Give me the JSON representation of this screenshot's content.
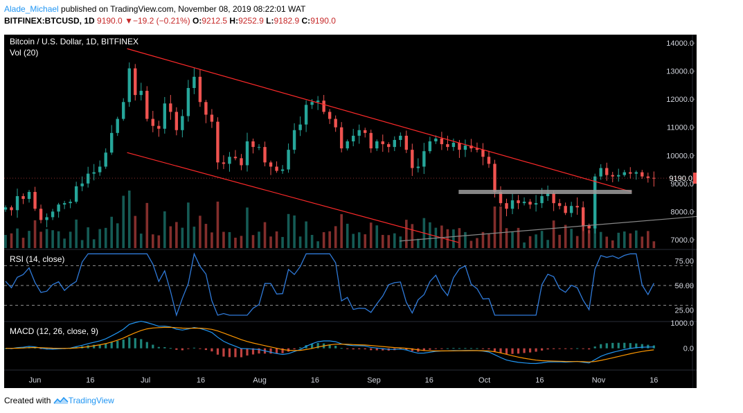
{
  "header": {
    "user": "Alade_Michael",
    "published": " published on TradingView.com, November 08, 2019 08:22:01 WAT"
  },
  "ticker": {
    "symbol": "BITFINEX:BTCUSD, 1D",
    "last": "9190.0",
    "arrow": "▼",
    "change": "−19.2 (−0.21%)",
    "o_label": "O:",
    "o": "9212.5",
    "h_label": "H:",
    "h": "9252.9",
    "l_label": "L:",
    "l": "9182.9",
    "c_label": "C:",
    "c": "9190.0"
  },
  "panes": {
    "price_title": "Bitcoin / U.S. Dollar, 1D, BITFINEX",
    "vol_title": "Vol (20)",
    "rsi_title": "RSI (14, close)",
    "macd_title": "MACD (12, 26, close, 9)",
    "price_badge": "9190.0"
  },
  "footer": {
    "created_with": "Created with",
    "brand": "TradingView"
  },
  "colors": {
    "background": "#000000",
    "up": "#26a69a",
    "down": "#ef5350",
    "channel": "#ff2a2a",
    "support": "#9e9e9e",
    "trend": "#888888",
    "rsi": "#2f7ad9",
    "macd": "#2196f3",
    "signal": "#ff9800",
    "badge": "#ef5350"
  },
  "chart_data": [
    {
      "type": "candlestick",
      "title": "Bitcoin / U.S. Dollar, 1D, BITFINEX",
      "x_ticks": [
        "Jun",
        "16",
        "Jul",
        "16",
        "Aug",
        "16",
        "Sep",
        "16",
        "Oct",
        "16",
        "Nov",
        "16"
      ],
      "y_ticks": [
        "7000.0",
        "8000.0",
        "9000.0",
        "10000.0",
        "11000.0",
        "12000.0",
        "13000.0",
        "14000.0"
      ],
      "ylim": [
        6700,
        14300
      ],
      "close_path": [
        8150,
        8050,
        8550,
        8450,
        8700,
        8100,
        7700,
        7800,
        8000,
        8250,
        8300,
        8350,
        8900,
        9000,
        9350,
        9400,
        9600,
        10100,
        10800,
        11300,
        11900,
        13100,
        12150,
        12300,
        11300,
        11050,
        10950,
        11850,
        11550,
        10900,
        11400,
        12400,
        12800,
        11900,
        11450,
        11200,
        9750,
        9700,
        9950,
        9900,
        9650,
        10500,
        10300,
        10300,
        9750,
        9600,
        9450,
        9500,
        10200,
        10900,
        11100,
        11800,
        11900,
        11950,
        11550,
        11300,
        11000,
        10250,
        10500,
        10700,
        10900,
        10800,
        10250,
        10500,
        10400,
        10300,
        10550,
        10700,
        10200,
        9550,
        9600,
        10150,
        10500,
        10600,
        10400,
        10300,
        10450,
        10200,
        10350,
        10250,
        10200,
        9950,
        9700,
        8700,
        8300,
        8100,
        8400,
        8300,
        8350,
        8250,
        8300,
        8550,
        8650,
        8300,
        8200,
        7950,
        8200,
        8150,
        7500,
        7400,
        9250,
        9550,
        9300,
        9250,
        9300,
        9400,
        9350,
        9400,
        9250,
        9200,
        9190
      ],
      "volume_ylim": [
        0,
        40000
      ],
      "last_price": 9190.0,
      "annotations": [
        {
          "kind": "descending channel (upper)",
          "from": [
            "Jun 26",
            13800
          ],
          "to": [
            "Nov 10",
            8700
          ]
        },
        {
          "kind": "descending channel (lower)",
          "from": [
            "Jun 26",
            10100
          ],
          "to": [
            "Sep 24",
            6900
          ]
        },
        {
          "kind": "support",
          "value": 8700,
          "from": "Sep 24",
          "to": "Nov 10"
        },
        {
          "kind": "rising trendline",
          "from": [
            "Sep 8",
            6950
          ],
          "to": [
            "Nov 30",
            7850
          ]
        }
      ]
    },
    {
      "type": "line",
      "title": "RSI (14, close)",
      "y_ticks": [
        "25.00",
        "50.00",
        "75.00"
      ],
      "ylim": [
        15,
        85
      ],
      "levels": [
        30,
        50,
        70
      ]
    },
    {
      "type": "line",
      "title": "MACD (12, 26, close, 9)",
      "y_ticks": [
        "0.0",
        "1000.0"
      ],
      "ylim": [
        -800,
        1000
      ],
      "series": [
        {
          "values": []
        },
        {
          "values": []
        }
      ]
    }
  ]
}
